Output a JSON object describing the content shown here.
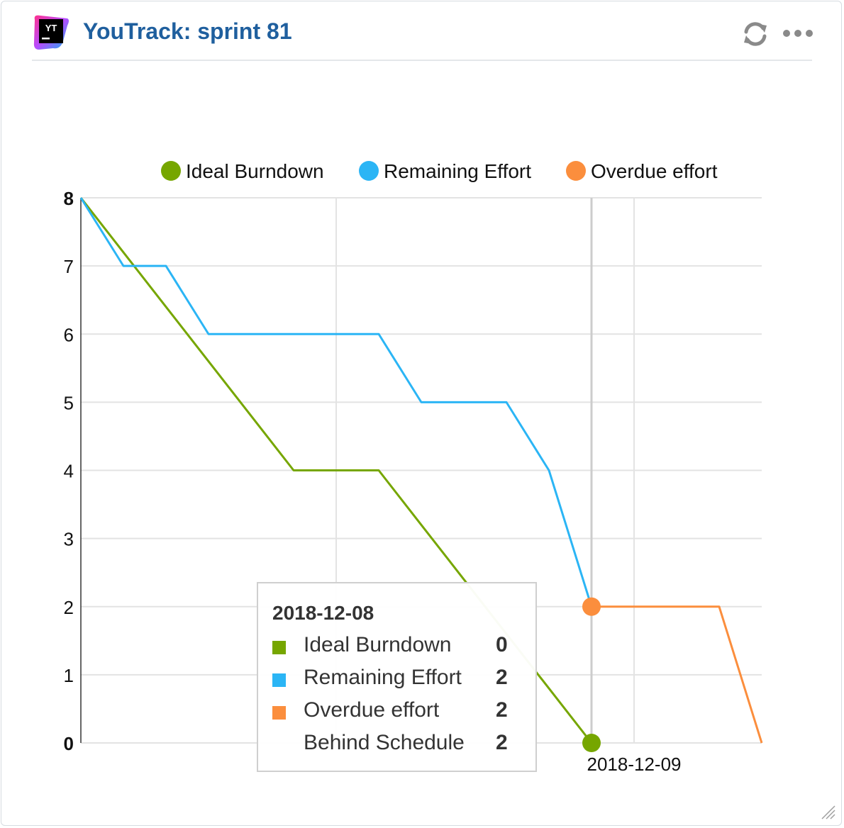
{
  "widget": {
    "title": "YouTrack: sprint 81",
    "logo_text": "YT",
    "icons": {
      "logo": "youtrack-logo-icon",
      "refresh": "refresh-icon",
      "menu": "more-dots-icon",
      "resize": "resize-grip-icon"
    }
  },
  "chart_data": {
    "type": "line",
    "title": "",
    "xlabel": "",
    "ylabel": "",
    "ylim": [
      0,
      8
    ],
    "y_ticks": [
      "0",
      "1",
      "2",
      "3",
      "4",
      "5",
      "6",
      "7",
      "8"
    ],
    "x_tick_labels": [
      "2018-12-09"
    ],
    "legend_position": "top",
    "grid": true,
    "steps": 16,
    "series": [
      {
        "name": "Ideal Burndown",
        "color": "#76a600",
        "values": [
          8,
          7.2,
          6.4,
          5.6,
          4.8,
          4,
          4,
          4,
          3.2,
          2.4,
          1.6,
          0.8,
          0,
          null,
          null,
          null,
          null
        ]
      },
      {
        "name": "Remaining Effort",
        "color": "#2bb5f5",
        "values": [
          8,
          7,
          7,
          6,
          6,
          6,
          6,
          6,
          5,
          5,
          5,
          4,
          2,
          null,
          null,
          null,
          null
        ]
      },
      {
        "name": "Overdue effort",
        "color": "#fb8e3d",
        "values": [
          null,
          null,
          null,
          null,
          null,
          null,
          null,
          null,
          null,
          null,
          null,
          null,
          2,
          2,
          2,
          2,
          0
        ]
      }
    ],
    "hover_index": 12,
    "tooltip": {
      "date": "2018-12-08",
      "rows": [
        {
          "label": "Ideal Burndown",
          "value": "0",
          "color": "#76a600"
        },
        {
          "label": "Remaining Effort",
          "value": "2",
          "color": "#2bb5f5"
        },
        {
          "label": "Overdue effort",
          "value": "2",
          "color": "#fb8e3d"
        },
        {
          "label": "Behind Schedule",
          "value": "2",
          "color": ""
        }
      ]
    }
  }
}
